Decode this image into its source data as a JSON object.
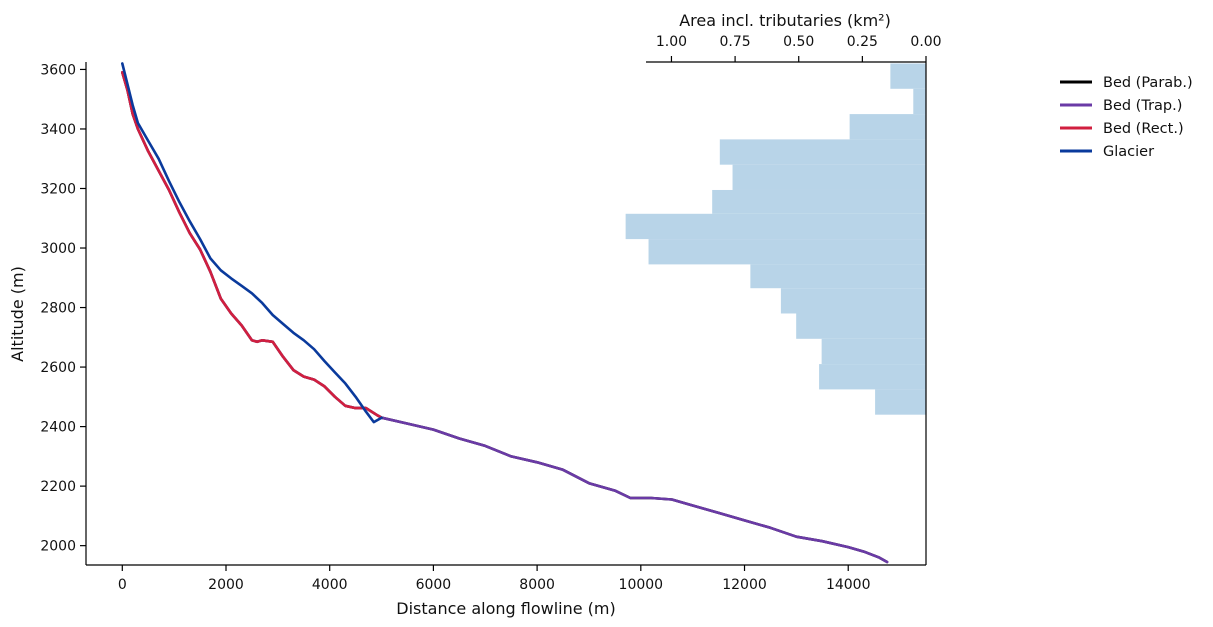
{
  "chart_data": {
    "type": "line",
    "xlabel": "Distance along flowline (m)",
    "ylabel": "Altitude (m)",
    "xlim": [
      -700,
      15500
    ],
    "ylim": [
      1935,
      3625
    ],
    "xticks": [
      0,
      2000,
      4000,
      6000,
      8000,
      10000,
      12000,
      14000
    ],
    "yticks": [
      2000,
      2200,
      2400,
      2600,
      2800,
      3000,
      3200,
      3400,
      3600
    ],
    "grid": false,
    "legend_position": "outside-right",
    "series": [
      {
        "name": "Bed (Parab.)",
        "color": "#000000",
        "x": [
          0,
          100,
          200,
          300,
          500,
          700,
          900,
          1100,
          1300,
          1500,
          1700,
          1900,
          2100,
          2300,
          2500,
          2600,
          2700,
          2900,
          3100,
          3300,
          3500,
          3700,
          3900,
          4100,
          4300,
          4500,
          4700,
          4900,
          5000,
          5500,
          6000,
          6500,
          7000,
          7500,
          8000,
          8500,
          9000,
          9500,
          9800,
          10200,
          10600,
          11000,
          11500,
          12000,
          12500,
          13000,
          13500,
          14000,
          14300,
          14600,
          14750
        ],
        "y": [
          3590,
          3530,
          3450,
          3400,
          3325,
          3260,
          3195,
          3120,
          3050,
          2995,
          2920,
          2830,
          2780,
          2740,
          2690,
          2685,
          2690,
          2685,
          2635,
          2590,
          2568,
          2558,
          2535,
          2500,
          2470,
          2462,
          2462,
          2440,
          2430,
          2410,
          2390,
          2360,
          2335,
          2300,
          2280,
          2255,
          2210,
          2185,
          2160,
          2160,
          2155,
          2135,
          2110,
          2085,
          2060,
          2030,
          2015,
          1995,
          1980,
          1960,
          1945
        ]
      },
      {
        "name": "Bed (Trap.)",
        "color": "#6a3aa6",
        "x": [
          0,
          100,
          200,
          300,
          500,
          700,
          900,
          1100,
          1300,
          1500,
          1700,
          1900,
          2100,
          2300,
          2500,
          2600,
          2700,
          2900,
          3100,
          3300,
          3500,
          3700,
          3900,
          4100,
          4300,
          4500,
          4700,
          4900,
          5000,
          5500,
          6000,
          6500,
          7000,
          7500,
          8000,
          8500,
          9000,
          9500,
          9800,
          10200,
          10600,
          11000,
          11500,
          12000,
          12500,
          13000,
          13500,
          14000,
          14300,
          14600,
          14750
        ],
        "y": [
          3590,
          3530,
          3450,
          3400,
          3325,
          3260,
          3195,
          3120,
          3050,
          2995,
          2920,
          2830,
          2780,
          2740,
          2690,
          2685,
          2690,
          2685,
          2635,
          2590,
          2568,
          2558,
          2535,
          2500,
          2470,
          2462,
          2462,
          2440,
          2430,
          2410,
          2390,
          2360,
          2335,
          2300,
          2280,
          2255,
          2210,
          2185,
          2160,
          2160,
          2155,
          2135,
          2110,
          2085,
          2060,
          2030,
          2015,
          1995,
          1980,
          1960,
          1945
        ]
      },
      {
        "name": "Bed (Rect.)",
        "color": "#d11f3f",
        "x": [
          0,
          100,
          200,
          300,
          500,
          700,
          900,
          1100,
          1300,
          1500,
          1700,
          1900,
          2100,
          2300,
          2500,
          2600,
          2700,
          2900,
          3100,
          3300,
          3500,
          3700,
          3900,
          4100,
          4300,
          4500,
          4700,
          4900,
          5000
        ],
        "y": [
          3590,
          3530,
          3450,
          3400,
          3325,
          3260,
          3195,
          3120,
          3050,
          2995,
          2920,
          2830,
          2780,
          2740,
          2690,
          2685,
          2690,
          2685,
          2635,
          2590,
          2568,
          2558,
          2535,
          2500,
          2470,
          2462,
          2462,
          2440,
          2430
        ]
      },
      {
        "name": "Glacier",
        "color": "#0a3a9c",
        "x": [
          0,
          100,
          200,
          300,
          500,
          700,
          900,
          1100,
          1300,
          1500,
          1700,
          1900,
          2100,
          2300,
          2500,
          2700,
          2900,
          3100,
          3300,
          3500,
          3700,
          3900,
          4100,
          4300,
          4500,
          4700,
          4850,
          5000
        ],
        "y": [
          3620,
          3550,
          3480,
          3420,
          3360,
          3300,
          3225,
          3155,
          3090,
          3030,
          2965,
          2925,
          2898,
          2873,
          2848,
          2815,
          2775,
          2745,
          2715,
          2690,
          2660,
          2620,
          2582,
          2545,
          2500,
          2450,
          2415,
          2430
        ]
      }
    ],
    "histogram": {
      "xlabel": "Area incl. tributaries (km²)",
      "xlim_reversed": [
        1.1,
        0.0
      ],
      "xticks": [
        1.0,
        0.75,
        0.5,
        0.25,
        0.0
      ],
      "xtick_labels": [
        "1.00",
        "0.75",
        "0.50",
        "0.25",
        "0.00"
      ],
      "color": "#b8d4e8",
      "bins": [
        {
          "y0": 2440,
          "y1": 2525,
          "area": 0.2
        },
        {
          "y0": 2525,
          "y1": 2610,
          "area": 0.42
        },
        {
          "y0": 2610,
          "y1": 2695,
          "area": 0.41
        },
        {
          "y0": 2695,
          "y1": 2780,
          "area": 0.51
        },
        {
          "y0": 2780,
          "y1": 2865,
          "area": 0.57
        },
        {
          "y0": 2865,
          "y1": 2945,
          "area": 0.69
        },
        {
          "y0": 2945,
          "y1": 3030,
          "area": 1.09
        },
        {
          "y0": 3030,
          "y1": 3115,
          "area": 1.18
        },
        {
          "y0": 3115,
          "y1": 3195,
          "area": 0.84
        },
        {
          "y0": 3195,
          "y1": 3280,
          "area": 0.76
        },
        {
          "y0": 3280,
          "y1": 3365,
          "area": 0.81
        },
        {
          "y0": 3365,
          "y1": 3450,
          "area": 0.3
        },
        {
          "y0": 3450,
          "y1": 3535,
          "area": 0.05
        },
        {
          "y0": 3535,
          "y1": 3620,
          "area": 0.14
        }
      ]
    }
  }
}
